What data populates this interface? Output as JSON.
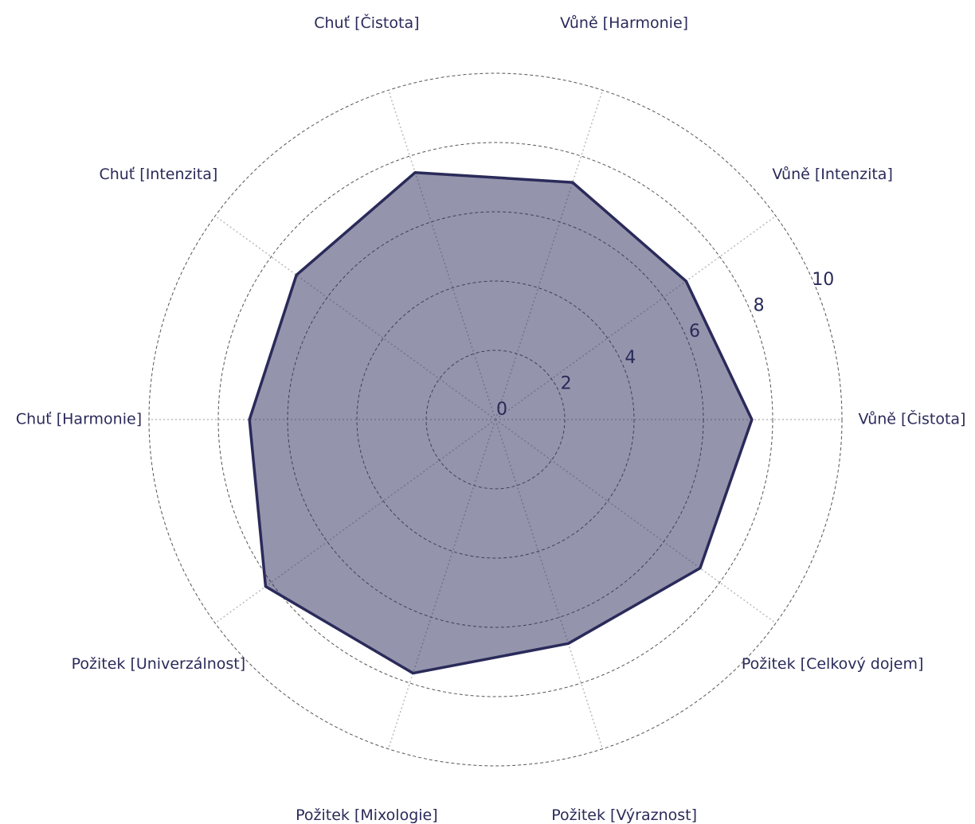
{
  "chart_data": {
    "type": "radar",
    "categories": [
      "Vůně [Čistota]",
      "Vůně [Intenzita]",
      "Vůně [Harmonie]",
      "Chuť [Čistota]",
      "Chuť [Intenzita]",
      "Chuť [Harmonie]",
      "Požitek [Univerzálnost]",
      "Požitek [Mixologie]",
      "Požitek [Výraznost]",
      "Požitek [Celkový dojem]"
    ],
    "values": [
      7.4,
      6.8,
      7.2,
      7.5,
      7.1,
      7.1,
      8.2,
      7.7,
      6.8,
      7.3
    ],
    "color": "#2a2a5a",
    "fill_color": "rgba(42,42,90,0.5)",
    "rlim": [
      0,
      10
    ],
    "rticks": [
      0,
      2,
      4,
      6,
      8,
      10
    ],
    "grid": true
  }
}
